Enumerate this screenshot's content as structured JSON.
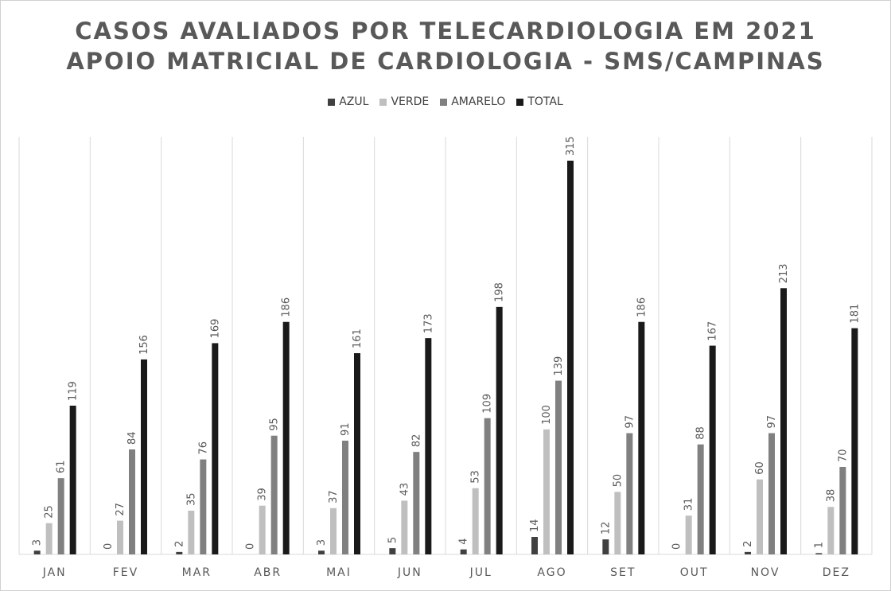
{
  "chart_data": {
    "type": "bar",
    "title": "CASOS AVALIADOS POR TELECARDIOLOGIA EM 2021",
    "subtitle": "APOIO MATRICIAL DE CARDIOLOGIA - SMS/CAMPINAS",
    "categories": [
      "JAN",
      "FEV",
      "MAR",
      "ABR",
      "MAI",
      "JUN",
      "JUL",
      "AGO",
      "SET",
      "OUT",
      "NOV",
      "DEZ"
    ],
    "series": [
      {
        "name": "AZUL",
        "color": "#404040",
        "values": [
          3,
          0,
          2,
          0,
          3,
          5,
          4,
          14,
          12,
          0,
          2,
          1
        ]
      },
      {
        "name": "VERDE",
        "color": "#bfbfbf",
        "values": [
          25,
          27,
          35,
          39,
          37,
          43,
          53,
          100,
          50,
          31,
          60,
          38
        ]
      },
      {
        "name": "AMARELO",
        "color": "#808080",
        "values": [
          61,
          84,
          76,
          95,
          91,
          82,
          109,
          139,
          97,
          88,
          97,
          70
        ]
      },
      {
        "name": "TOTAL",
        "color": "#1a1a1a",
        "values": [
          119,
          156,
          169,
          186,
          161,
          173,
          198,
          315,
          186,
          167,
          213,
          181
        ]
      }
    ],
    "ylim": [
      0,
      350
    ],
    "legend_position": "top",
    "data_labels": true,
    "grid": "vertical-category-separators"
  }
}
